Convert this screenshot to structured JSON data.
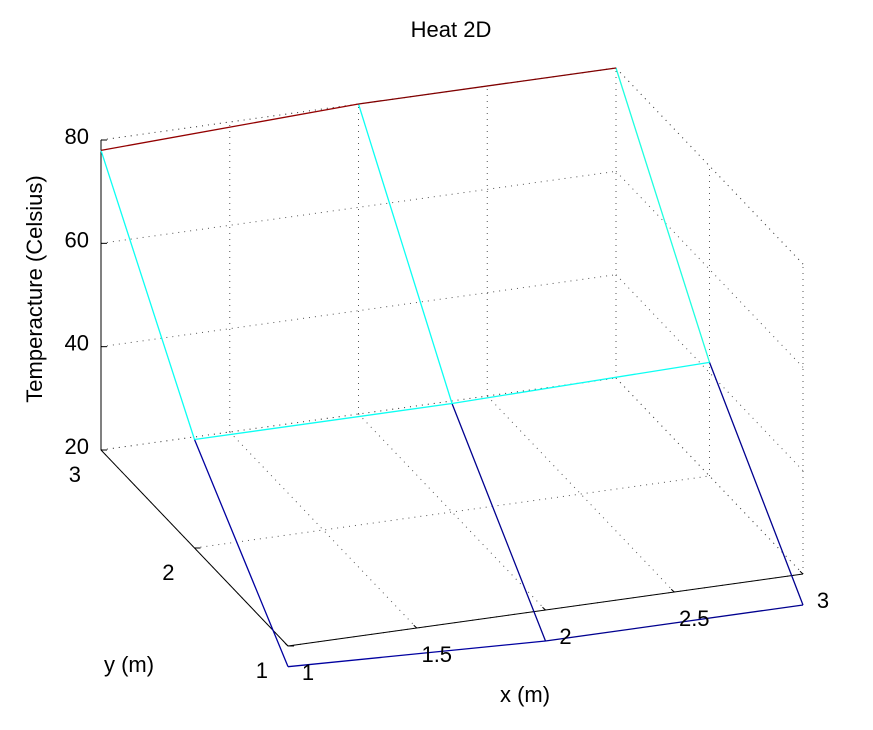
{
  "chart_data": {
    "type": "surface-mesh",
    "title": "Heat 2D",
    "xlabel": "x (m)",
    "ylabel": "y (m)",
    "zlabel": "Temperacture (Celsius)",
    "xlim": [
      1,
      3
    ],
    "ylim": [
      1,
      3
    ],
    "zlim": [
      20,
      80
    ],
    "xticks": [
      1,
      1.5,
      2,
      2.5,
      3
    ],
    "xtick_labels": [
      "1",
      "1.5",
      "2",
      "2.5",
      "3"
    ],
    "yticks": [
      1,
      2,
      3
    ],
    "ytick_labels": [
      "1",
      "2",
      "3"
    ],
    "zticks": [
      20,
      40,
      60,
      80
    ],
    "ztick_labels": [
      "20",
      "40",
      "60",
      "80"
    ],
    "grid": true,
    "x": [
      1,
      2,
      3
    ],
    "y": [
      1,
      2,
      3
    ],
    "z": [
      [
        16,
        14,
        14
      ],
      [
        41,
        41,
        42
      ],
      [
        78,
        80,
        80
      ]
    ],
    "colormap": {
      "min": 14,
      "max": 80,
      "stops": [
        "#00008f",
        "#0000ff",
        "#00ffff",
        "#ffff00",
        "#ff0000",
        "#800000"
      ]
    }
  }
}
